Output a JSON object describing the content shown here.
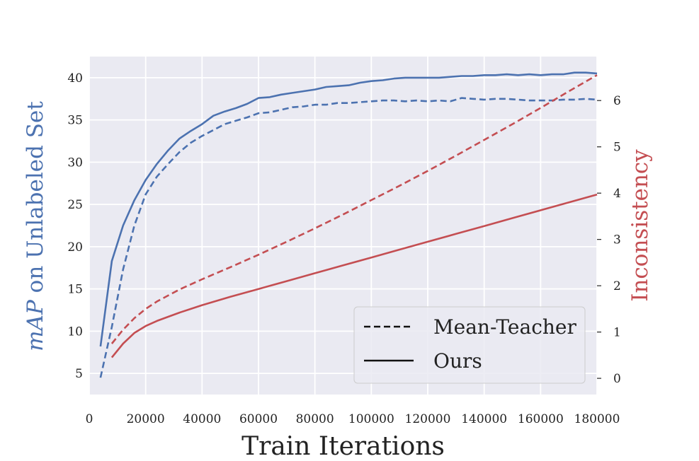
{
  "chart_data": {
    "type": "line",
    "xlabel": "Train Iterations",
    "ylabel_prefix": "mAP",
    "ylabel_suffix": " on Unlabeled Set",
    "y2label": "Inconsistency",
    "xlim": [
      0,
      180000
    ],
    "ylim": [
      2.5,
      42.5
    ],
    "y2lim": [
      -0.35,
      6.95
    ],
    "xticks": [
      "0",
      "20000",
      "40000",
      "60000",
      "80000",
      "100000",
      "120000",
      "140000",
      "160000",
      "180000"
    ],
    "yticks": [
      "5",
      "10",
      "15",
      "20",
      "25",
      "30",
      "35",
      "40"
    ],
    "y2ticks": [
      "0",
      "1",
      "2",
      "3",
      "4",
      "5",
      "6"
    ],
    "grid": true,
    "legend": {
      "placement": "lower-right",
      "entries": [
        {
          "label": "Mean-Teacher",
          "style": "dashed"
        },
        {
          "label": "Ours",
          "style": "solid"
        }
      ]
    },
    "colors": {
      "map": "#4c72b0",
      "inconsistency": "#c44e52",
      "background": "#eaeaf2"
    },
    "series": [
      {
        "name": "Ours",
        "metric": "mAP",
        "axis": "left",
        "style": "solid",
        "x": [
          4000,
          8000,
          12000,
          16000,
          20000,
          24000,
          28000,
          32000,
          36000,
          40000,
          44000,
          48000,
          52000,
          56000,
          60000,
          64000,
          68000,
          72000,
          76000,
          80000,
          84000,
          88000,
          92000,
          96000,
          100000,
          104000,
          108000,
          112000,
          116000,
          120000,
          124000,
          128000,
          132000,
          136000,
          140000,
          144000,
          148000,
          152000,
          156000,
          160000,
          164000,
          168000,
          172000,
          176000,
          180000
        ],
        "y": [
          8.2,
          18.3,
          22.5,
          25.5,
          27.9,
          29.8,
          31.4,
          32.8,
          33.7,
          34.5,
          35.5,
          36.0,
          36.4,
          36.9,
          37.6,
          37.7,
          38.0,
          38.2,
          38.4,
          38.6,
          38.9,
          39.0,
          39.1,
          39.4,
          39.6,
          39.7,
          39.9,
          40.0,
          40.0,
          40.0,
          40.0,
          40.1,
          40.2,
          40.2,
          40.3,
          40.3,
          40.4,
          40.3,
          40.4,
          40.3,
          40.4,
          40.4,
          40.6,
          40.6,
          40.5
        ]
      },
      {
        "name": "Mean-Teacher",
        "metric": "mAP",
        "axis": "left",
        "style": "dashed",
        "x": [
          4000,
          8000,
          12000,
          16000,
          20000,
          24000,
          28000,
          32000,
          36000,
          40000,
          44000,
          48000,
          52000,
          56000,
          60000,
          64000,
          68000,
          72000,
          76000,
          80000,
          84000,
          88000,
          92000,
          96000,
          100000,
          104000,
          108000,
          112000,
          116000,
          120000,
          124000,
          128000,
          132000,
          136000,
          140000,
          144000,
          148000,
          152000,
          156000,
          160000,
          164000,
          168000,
          172000,
          176000,
          180000
        ],
        "y": [
          4.5,
          10.5,
          17.3,
          22.5,
          26.2,
          28.3,
          29.8,
          31.2,
          32.3,
          33.1,
          33.8,
          34.5,
          34.9,
          35.3,
          35.8,
          35.9,
          36.2,
          36.5,
          36.6,
          36.8,
          36.8,
          37.0,
          37.0,
          37.1,
          37.2,
          37.3,
          37.3,
          37.2,
          37.3,
          37.2,
          37.3,
          37.2,
          37.6,
          37.5,
          37.4,
          37.5,
          37.5,
          37.4,
          37.3,
          37.3,
          37.3,
          37.4,
          37.4,
          37.5,
          37.4
        ]
      },
      {
        "name": "Ours",
        "metric": "Inconsistency",
        "axis": "right",
        "style": "solid",
        "x": [
          8000,
          12000,
          16000,
          20000,
          24000,
          28000,
          32000,
          36000,
          40000,
          50000,
          60000,
          70000,
          80000,
          90000,
          100000,
          110000,
          120000,
          130000,
          140000,
          150000,
          160000,
          170000,
          180000
        ],
        "y": [
          0.45,
          0.75,
          0.98,
          1.13,
          1.24,
          1.33,
          1.42,
          1.5,
          1.58,
          1.76,
          1.93,
          2.1,
          2.27,
          2.44,
          2.61,
          2.78,
          2.95,
          3.12,
          3.29,
          3.46,
          3.63,
          3.8,
          3.97
        ]
      },
      {
        "name": "Mean-Teacher",
        "metric": "Inconsistency",
        "axis": "right",
        "style": "dashed",
        "x": [
          8000,
          12000,
          16000,
          20000,
          24000,
          28000,
          32000,
          36000,
          40000,
          50000,
          60000,
          70000,
          80000,
          90000,
          100000,
          110000,
          120000,
          130000,
          140000,
          150000,
          160000,
          170000,
          180000
        ],
        "y": [
          0.75,
          1.05,
          1.3,
          1.5,
          1.66,
          1.79,
          1.92,
          2.03,
          2.14,
          2.4,
          2.67,
          2.95,
          3.24,
          3.54,
          3.85,
          4.16,
          4.48,
          4.81,
          5.15,
          5.49,
          5.84,
          6.2,
          6.55
        ]
      }
    ]
  }
}
